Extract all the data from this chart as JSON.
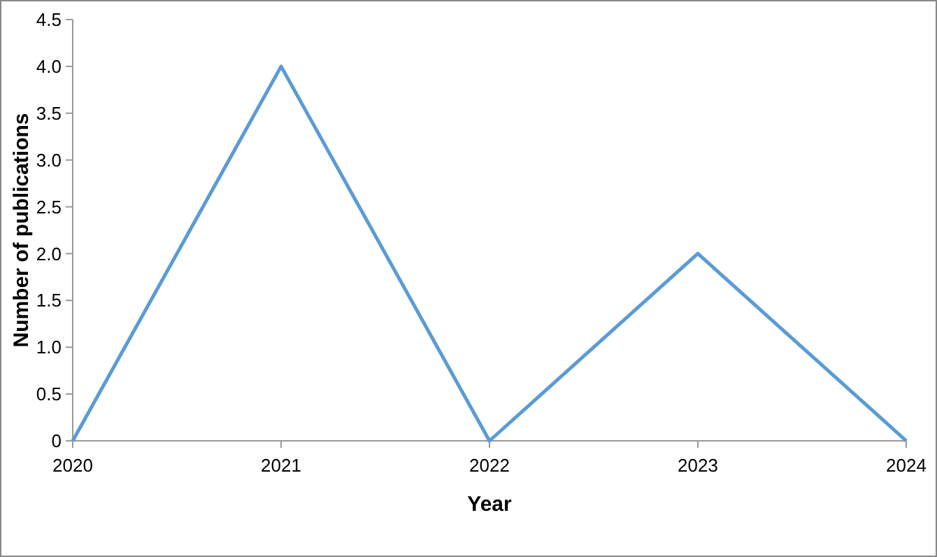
{
  "chart_data": {
    "type": "line",
    "xlabel": "Year",
    "ylabel": "Number of publications",
    "categories": [
      "2020",
      "2021",
      "2022",
      "2023",
      "2024"
    ],
    "series": [
      {
        "color": "#5b9bd5",
        "values": [
          0,
          4,
          0,
          2,
          0
        ]
      }
    ],
    "ylim": [
      0,
      4.5
    ],
    "yticks": [
      0,
      0.5,
      {
        "value": 1,
        "label": "1.0"
      },
      1.5,
      {
        "value": 2,
        "label": "2.0"
      },
      2.5,
      {
        "value": 3,
        "label": "3.0"
      },
      3.5,
      {
        "value": 4,
        "label": "4.0"
      },
      4.5
    ],
    "grid": false,
    "marker": "none",
    "line_style": "solid"
  }
}
